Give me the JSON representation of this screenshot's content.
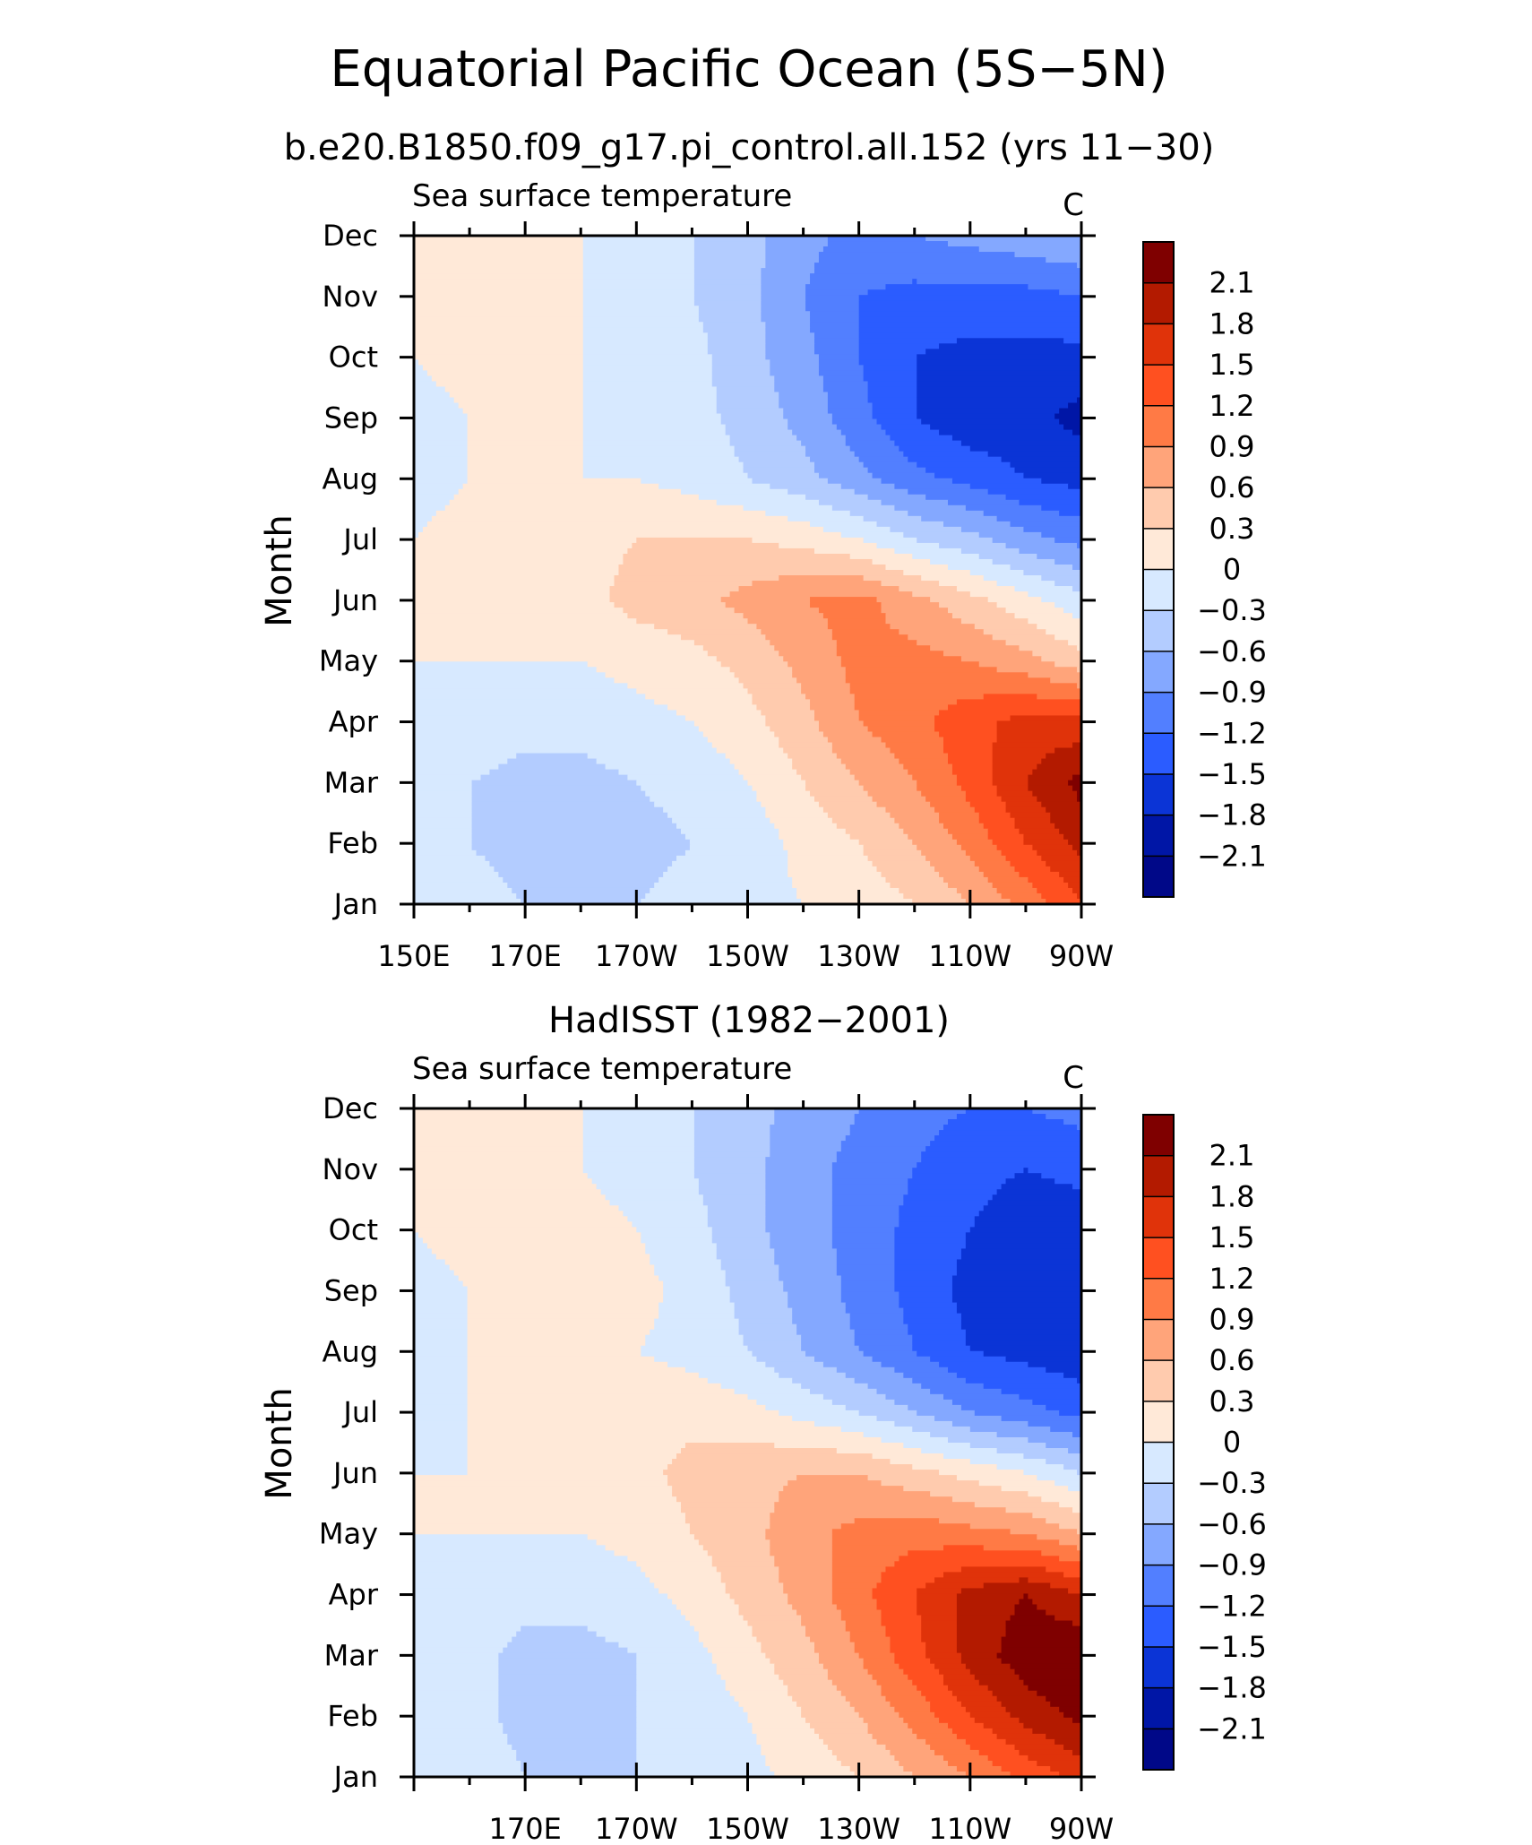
{
  "figure": {
    "title": "Equatorial Pacific Ocean (5S−5N)"
  },
  "colorbar": {
    "levels": [
      "2.1",
      "1.8",
      "1.5",
      "1.2",
      "0.9",
      "0.6",
      "0.3",
      "0",
      "−0.3",
      "−0.6",
      "−0.9",
      "−1.2",
      "−1.5",
      "−1.8",
      "−2.1"
    ],
    "colors": [
      "#7f0000",
      "#b31a00",
      "#e0330a",
      "#ff5020",
      "#ff7a45",
      "#ffa47a",
      "#ffcbae",
      "#ffe9d8",
      "#d7e9ff",
      "#b3ccff",
      "#84a8ff",
      "#527fff",
      "#2b5cff",
      "#0b34d6",
      "#0016a6",
      "#000888"
    ]
  },
  "chart_data": [
    {
      "type": "heatmap",
      "title": "b.e20.B1850.f09_g17.pi_control.all.152 (yrs 11−30)",
      "subtitle": "Sea surface temperature",
      "units": "C",
      "ylabel": "Month",
      "xlabel": "",
      "x_ticks": [
        "150E",
        "170E",
        "170W",
        "150W",
        "130W",
        "110W",
        "90W"
      ],
      "y_ticks": [
        "Jan",
        "Feb",
        "Mar",
        "Apr",
        "May",
        "Jun",
        "Jul",
        "Aug",
        "Sep",
        "Oct",
        "Nov",
        "Dec"
      ],
      "x": [
        150,
        160,
        170,
        180,
        190,
        200,
        210,
        220,
        230,
        240,
        250,
        260,
        270
      ],
      "y": [
        "Jan",
        "Feb",
        "Mar",
        "Apr",
        "May",
        "Jun",
        "Jul",
        "Aug",
        "Sep",
        "Oct",
        "Nov",
        "Dec"
      ],
      "z": [
        [
          -0.1,
          -0.2,
          -0.3,
          -0.3,
          -0.3,
          -0.2,
          -0.1,
          0.0,
          0.1,
          0.3,
          0.6,
          1.0,
          1.5
        ],
        [
          -0.2,
          -0.3,
          -0.4,
          -0.5,
          -0.4,
          -0.3,
          -0.2,
          0.1,
          0.3,
          0.6,
          1.0,
          1.5,
          1.9
        ],
        [
          -0.1,
          -0.3,
          -0.4,
          -0.4,
          -0.3,
          -0.2,
          0.0,
          0.3,
          0.6,
          0.9,
          1.3,
          1.8,
          2.2
        ],
        [
          -0.1,
          -0.1,
          -0.2,
          -0.2,
          -0.1,
          0.0,
          0.2,
          0.5,
          0.9,
          1.1,
          1.4,
          1.6,
          1.6
        ],
        [
          0.0,
          0.0,
          0.0,
          0.0,
          0.1,
          0.2,
          0.4,
          0.7,
          1.0,
          1.0,
          0.9,
          0.7,
          0.4
        ],
        [
          0.0,
          0.1,
          0.1,
          0.2,
          0.4,
          0.5,
          0.7,
          0.9,
          1.0,
          0.7,
          0.4,
          0.1,
          -0.2
        ],
        [
          0.0,
          0.1,
          0.1,
          0.2,
          0.3,
          0.3,
          0.3,
          0.2,
          0.0,
          -0.3,
          -0.5,
          -0.8,
          -1.0
        ],
        [
          -0.1,
          0.0,
          0.0,
          0.0,
          0.0,
          -0.1,
          -0.3,
          -0.5,
          -0.8,
          -1.1,
          -1.3,
          -1.5,
          -1.6
        ],
        [
          -0.1,
          0.0,
          0.0,
          0.0,
          -0.1,
          -0.2,
          -0.4,
          -0.7,
          -1.1,
          -1.5,
          -1.7,
          -1.7,
          -1.9
        ],
        [
          0.0,
          0.1,
          0.1,
          0.0,
          -0.1,
          -0.2,
          -0.5,
          -0.8,
          -1.2,
          -1.5,
          -1.6,
          -1.6,
          -1.6
        ],
        [
          0.0,
          0.1,
          0.1,
          0.0,
          -0.1,
          -0.3,
          -0.5,
          -0.9,
          -1.2,
          -1.3,
          -1.3,
          -1.3,
          -1.2
        ],
        [
          0.0,
          0.1,
          0.1,
          0.0,
          -0.1,
          -0.3,
          -0.5,
          -0.8,
          -1.0,
          -0.9,
          -0.8,
          -0.7,
          -0.6
        ]
      ]
    },
    {
      "type": "heatmap",
      "title": "HadISST (1982−2001)",
      "subtitle": "Sea surface temperature",
      "units": "C",
      "ylabel": "Month",
      "xlabel": "",
      "x_ticks": [
        "170E",
        "170W",
        "150W",
        "130W",
        "110W",
        "90W"
      ],
      "y_ticks": [
        "Jan",
        "Feb",
        "Mar",
        "Apr",
        "May",
        "Jun",
        "Jul",
        "Aug",
        "Sep",
        "Oct",
        "Nov",
        "Dec"
      ],
      "x": [
        150,
        160,
        170,
        180,
        190,
        200,
        210,
        220,
        230,
        240,
        250,
        260,
        270
      ],
      "y": [
        "Jan",
        "Feb",
        "Mar",
        "Apr",
        "May",
        "Jun",
        "Jul",
        "Aug",
        "Sep",
        "Oct",
        "Nov",
        "Dec"
      ],
      "z": [
        [
          0.0,
          -0.1,
          -0.3,
          -0.3,
          -0.3,
          -0.2,
          -0.1,
          0.1,
          0.3,
          0.6,
          0.9,
          1.3,
          1.6
        ],
        [
          -0.1,
          -0.2,
          -0.4,
          -0.4,
          -0.3,
          -0.2,
          0.0,
          0.3,
          0.6,
          1.0,
          1.5,
          1.9,
          2.2
        ],
        [
          -0.1,
          -0.2,
          -0.4,
          -0.4,
          -0.3,
          -0.1,
          0.2,
          0.5,
          0.9,
          1.4,
          1.9,
          2.3,
          2.4
        ],
        [
          -0.1,
          -0.1,
          -0.2,
          -0.2,
          -0.1,
          0.1,
          0.4,
          0.7,
          1.1,
          1.5,
          1.9,
          2.1,
          1.8
        ],
        [
          0.0,
          0.0,
          0.0,
          0.0,
          0.1,
          0.3,
          0.5,
          0.8,
          1.0,
          1.1,
          1.0,
          0.9,
          0.6
        ],
        [
          0.0,
          0.0,
          0.1,
          0.1,
          0.2,
          0.4,
          0.5,
          0.6,
          0.6,
          0.4,
          0.2,
          0.0,
          -0.3
        ],
        [
          -0.1,
          0.0,
          0.1,
          0.1,
          0.2,
          0.2,
          0.1,
          -0.1,
          -0.3,
          -0.6,
          -0.9,
          -1.1,
          -1.3
        ],
        [
          -0.1,
          0.0,
          0.1,
          0.1,
          0.0,
          -0.1,
          -0.3,
          -0.6,
          -0.9,
          -1.2,
          -1.5,
          -1.6,
          -1.7
        ],
        [
          -0.1,
          0.0,
          0.1,
          0.2,
          0.1,
          -0.1,
          -0.4,
          -0.7,
          -1.0,
          -1.3,
          -1.6,
          -1.8,
          -1.8
        ],
        [
          0.0,
          0.1,
          0.1,
          0.1,
          0.0,
          -0.2,
          -0.5,
          -0.8,
          -1.0,
          -1.3,
          -1.5,
          -1.7,
          -1.7
        ],
        [
          0.0,
          0.1,
          0.1,
          0.0,
          -0.1,
          -0.3,
          -0.5,
          -0.8,
          -1.0,
          -1.2,
          -1.4,
          -1.5,
          -1.4
        ],
        [
          0.0,
          0.1,
          0.1,
          0.0,
          -0.1,
          -0.3,
          -0.5,
          -0.7,
          -0.9,
          -1.1,
          -1.2,
          -1.2,
          -1.1
        ]
      ]
    }
  ]
}
